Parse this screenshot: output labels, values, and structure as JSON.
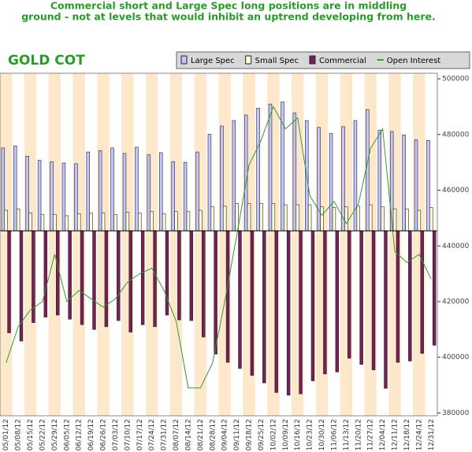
{
  "chart_data": {
    "type": "bar",
    "annotation": [
      "Commercial short and Large Spec long positions are in middling",
      "ground - not at levels that would inhibit an uptrend developing from here."
    ],
    "title": "GOLD COT",
    "categories": [
      "05/01/12",
      "05/08/12",
      "05/15/12",
      "05/22/12",
      "05/29/12",
      "06/05/12",
      "06/12/12",
      "06/19/12",
      "06/26/12",
      "07/03/12",
      "07/10/12",
      "07/17/12",
      "07/24/12",
      "07/31/12",
      "08/07/12",
      "08/14/12",
      "08/21/12",
      "08/28/12",
      "09/04/12",
      "09/11/12",
      "09/18/12",
      "09/25/12",
      "10/02/12",
      "10/09/12",
      "10/16/12",
      "10/23/12",
      "10/30/12",
      "11/06/12",
      "11/13/12",
      "11/20/12",
      "11/27/12",
      "12/04/12",
      "12/11/12",
      "12/18/12",
      "12/24/12",
      "12/31/12"
    ],
    "series": [
      {
        "name": "Large Spec",
        "color": "#c4c4f8",
        "axis": "y2",
        "values": [
          121000,
          124000,
          109000,
          103000,
          101000,
          99000,
          98000,
          115000,
          117000,
          121000,
          113000,
          122000,
          111000,
          114000,
          101000,
          100000,
          115000,
          141000,
          153000,
          161000,
          169000,
          179000,
          185000,
          188000,
          172000,
          161000,
          151000,
          142000,
          152000,
          161000,
          177000,
          147000,
          145000,
          140000,
          133000,
          132000
        ]
      },
      {
        "name": "Small Spec",
        "color": "#ffffd8",
        "axis": "y2",
        "values": [
          30000,
          32000,
          26000,
          24000,
          24000,
          22000,
          25000,
          26000,
          26000,
          24000,
          27000,
          26000,
          28000,
          25000,
          28000,
          28000,
          30000,
          35000,
          36000,
          40000,
          40000,
          40000,
          40000,
          38000,
          38000,
          38000,
          35000,
          34000,
          35000,
          36000,
          38000,
          35000,
          32000,
          32000,
          30000,
          34000
        ]
      },
      {
        "name": "Commercial",
        "color": "#782050",
        "axis": "y2",
        "values": [
          -149000,
          -161000,
          -134000,
          -126000,
          -123000,
          -129000,
          -137000,
          -144000,
          -140000,
          -131000,
          -148000,
          -137000,
          -140000,
          -123000,
          -130000,
          -131000,
          -155000,
          -180000,
          -192000,
          -201000,
          -211000,
          -222000,
          -236000,
          -240000,
          -238000,
          -219000,
          -209000,
          -206000,
          -186000,
          -195000,
          -203000,
          -230000,
          -192000,
          -190000,
          -179000,
          -167000
        ]
      },
      {
        "name": "Open Interest",
        "color": "#339933",
        "type": "line",
        "values": [
          398000,
          411000,
          417000,
          420000,
          437000,
          420000,
          424000,
          421000,
          418000,
          421000,
          427000,
          430000,
          432000,
          424000,
          413000,
          389000,
          389000,
          398000,
          420000,
          444000,
          469000,
          478000,
          490000,
          482000,
          486000,
          458000,
          451000,
          456000,
          448000,
          455000,
          475000,
          482000,
          438000,
          434000,
          437000,
          428000
        ]
      }
    ],
    "ylim": [
      379000,
      502000
    ],
    "yticks": [
      380000,
      400000,
      420000,
      440000,
      460000,
      480000,
      500000
    ],
    "y2lim": [
      -270000,
      230000
    ]
  }
}
